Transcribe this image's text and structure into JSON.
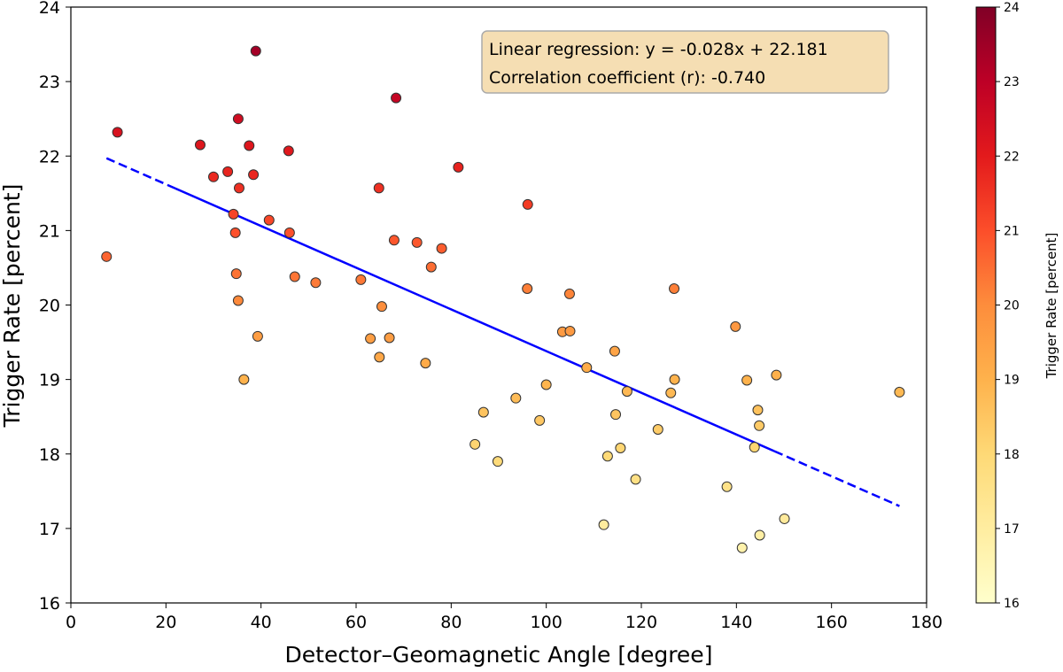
{
  "chart_data": {
    "type": "scatter",
    "xlabel": "Detector–Geomagnetic Angle [degree]",
    "ylabel": "Trigger Rate [percent]",
    "xlim": [
      0,
      180
    ],
    "ylim": [
      16,
      24
    ],
    "xticks": [
      0,
      20,
      40,
      60,
      80,
      100,
      120,
      140,
      160,
      180
    ],
    "yticks": [
      16,
      17,
      18,
      19,
      20,
      21,
      22,
      23,
      24
    ],
    "grid": false,
    "colormap": "YlOrRd",
    "colorbar": {
      "label": "Trigger Rate [percent]",
      "range": [
        16,
        24
      ],
      "ticks": [
        16,
        17,
        18,
        19,
        20,
        21,
        22,
        23,
        24
      ]
    },
    "regression": {
      "slope": -0.028,
      "intercept": 22.181,
      "x_range": [
        7.5,
        174.3
      ],
      "color": "#0000ff"
    },
    "annotation": [
      "Linear regression: y = -0.028x + 22.181",
      "Correlation coefficient (r): -0.740"
    ],
    "annotation_bg": "#f5deb3",
    "points": [
      [
        7.5,
        20.65
      ],
      [
        9.8,
        22.32
      ],
      [
        27.2,
        22.15
      ],
      [
        30,
        21.72
      ],
      [
        33,
        21.79
      ],
      [
        37.5,
        22.14
      ],
      [
        35.2,
        22.5
      ],
      [
        38.9,
        23.41
      ],
      [
        38.4,
        21.75
      ],
      [
        35.4,
        21.57
      ],
      [
        34.2,
        21.22
      ],
      [
        34.6,
        20.97
      ],
      [
        41.7,
        21.14
      ],
      [
        45.8,
        22.07
      ],
      [
        46,
        20.97
      ],
      [
        34.8,
        20.42
      ],
      [
        35.2,
        20.06
      ],
      [
        47.1,
        20.38
      ],
      [
        51.5,
        20.3
      ],
      [
        39.3,
        19.58
      ],
      [
        36.4,
        19.0
      ],
      [
        61,
        20.34
      ],
      [
        64.8,
        21.57
      ],
      [
        68.4,
        22.78
      ],
      [
        65.4,
        19.98
      ],
      [
        63,
        19.55
      ],
      [
        67,
        19.56
      ],
      [
        64.9,
        19.3
      ],
      [
        68,
        20.87
      ],
      [
        72.8,
        20.84
      ],
      [
        78,
        20.76
      ],
      [
        75.8,
        20.51
      ],
      [
        74.6,
        19.22
      ],
      [
        81.5,
        21.85
      ],
      [
        96.1,
        21.35
      ],
      [
        96,
        20.22
      ],
      [
        104.9,
        20.15
      ],
      [
        103.4,
        19.64
      ],
      [
        105,
        19.65
      ],
      [
        108.5,
        19.16
      ],
      [
        114.4,
        19.38
      ],
      [
        114.6,
        18.53
      ],
      [
        117,
        18.84
      ],
      [
        126.9,
        20.22
      ],
      [
        127,
        19.0
      ],
      [
        126.2,
        18.82
      ],
      [
        139.8,
        19.71
      ],
      [
        142.2,
        18.99
      ],
      [
        148.4,
        19.06
      ],
      [
        144.5,
        18.59
      ],
      [
        144.8,
        18.38
      ],
      [
        143.8,
        18.09
      ],
      [
        174.3,
        18.83
      ],
      [
        86.8,
        18.56
      ],
      [
        93.6,
        18.75
      ],
      [
        100,
        18.93
      ],
      [
        98.6,
        18.45
      ],
      [
        85,
        18.13
      ],
      [
        89.8,
        17.9
      ],
      [
        112.9,
        17.97
      ],
      [
        115.6,
        18.08
      ],
      [
        123.5,
        18.33
      ],
      [
        118.8,
        17.66
      ],
      [
        112.1,
        17.05
      ],
      [
        138,
        17.56
      ],
      [
        141.2,
        16.74
      ],
      [
        144.9,
        16.91
      ],
      [
        150.1,
        17.13
      ]
    ]
  }
}
